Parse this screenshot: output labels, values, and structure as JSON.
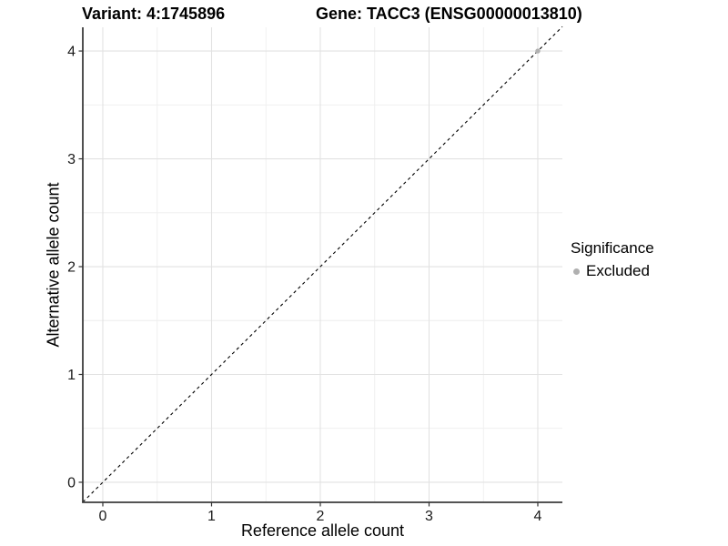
{
  "page": {
    "background": "#ffffff"
  },
  "header": {
    "title_left": "Variant: 4:1745896",
    "title_right": "Gene: TACC3 (ENSG00000013810)"
  },
  "legend": {
    "title": "Significance",
    "entries": [
      {
        "label": "Excluded",
        "color": "#b0b0b0"
      }
    ]
  },
  "chart_data": {
    "type": "scatter",
    "title": "Variant: 4:1745896 / Gene: TACC3 (ENSG00000013810)",
    "xlabel": "Reference allele count",
    "ylabel": "Alternative allele count",
    "xticks": [
      0,
      1,
      2,
      3,
      4
    ],
    "yticks": [
      0,
      1,
      2,
      3,
      4
    ],
    "x_minor": [
      0.5,
      1.5,
      2.5,
      3.5
    ],
    "y_minor": [
      0.5,
      1.5,
      2.5,
      3.5
    ],
    "xlim": [
      -0.184,
      4.226
    ],
    "ylim": [
      -0.186,
      4.22
    ],
    "grid": "major+minor",
    "legend_position": "right",
    "series": [
      {
        "name": "Excluded",
        "color": "#b0b0b0",
        "points": [
          {
            "x": 4,
            "y": 4
          }
        ]
      }
    ],
    "reference_line": {
      "type": "identity",
      "slope": 1,
      "intercept": 0,
      "style": "dashed",
      "color": "#000000"
    },
    "colors": {
      "grid_major": "#e2e2e2",
      "grid_minor": "#eeeeee",
      "axis_line": "#3c3c3c",
      "tick_mark": "#333333",
      "tick_text": "#1a1a1a"
    }
  }
}
